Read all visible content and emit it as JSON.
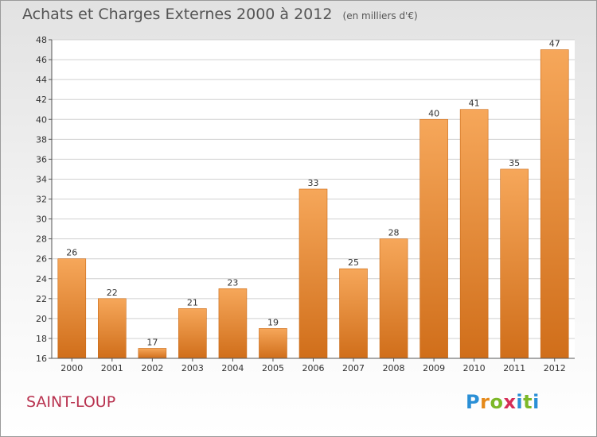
{
  "title": "Achats et Charges Externes 2000 à 2012",
  "subtitle": "(en milliers d'€)",
  "commune": "SAINT-LOUP",
  "logo": {
    "letters": [
      "P",
      "r",
      "o",
      "x",
      "i",
      "t",
      "i"
    ],
    "colors": [
      "#2a8fd6",
      "#e5891a",
      "#7cb828",
      "#d52d57",
      "#2a8fd6",
      "#7cb828",
      "#2a8fd6"
    ]
  },
  "colors": {
    "bar_top": "#f6a75a",
    "bar_bottom": "#d06e1a",
    "grid": "#d0d0d0",
    "axis": "#555555",
    "commune": "#b8324f"
  },
  "chart_data": {
    "type": "bar",
    "title": "Achats et Charges Externes 2000 à 2012",
    "subtitle": "(en milliers d'€)",
    "categories": [
      "2000",
      "2001",
      "2002",
      "2003",
      "2004",
      "2005",
      "2006",
      "2007",
      "2008",
      "2009",
      "2010",
      "2011",
      "2012"
    ],
    "values": [
      26,
      22,
      17,
      21,
      23,
      19,
      33,
      25,
      28,
      40,
      41,
      35,
      47
    ],
    "ylim": [
      16,
      48
    ],
    "ytick_step": 2,
    "grid": true,
    "legend": "none"
  }
}
